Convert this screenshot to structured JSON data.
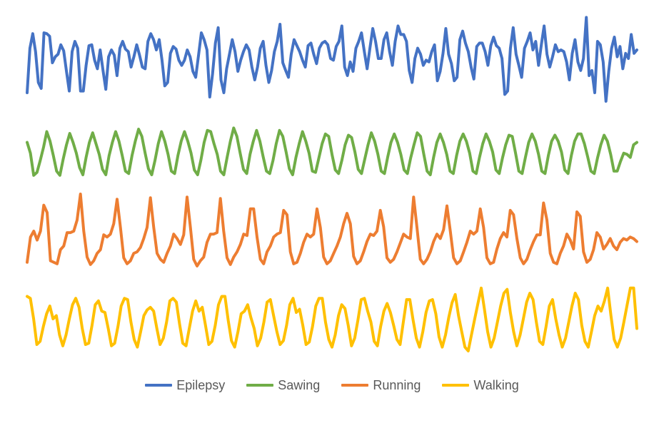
{
  "chart_data": {
    "type": "line",
    "title": "",
    "xlabel": "",
    "ylabel": "",
    "grid": false,
    "legend_position": "bottom",
    "series": [
      {
        "name": "Epilepsy",
        "color": "#4472C4",
        "values": [
          0.1,
          0.62,
          0.79,
          0.58,
          0.22,
          0.15,
          0.8,
          0.79,
          0.76,
          0.45,
          0.52,
          0.55,
          0.66,
          0.59,
          0.35,
          0.12,
          0.58,
          0.7,
          0.62,
          0.12,
          0.12,
          0.42,
          0.65,
          0.66,
          0.48,
          0.38,
          0.6,
          0.36,
          0.14,
          0.52,
          0.6,
          0.54,
          0.3,
          0.62,
          0.7,
          0.61,
          0.58,
          0.4,
          0.52,
          0.66,
          0.54,
          0.4,
          0.38,
          0.7,
          0.79,
          0.72,
          0.6,
          0.72,
          0.48,
          0.18,
          0.22,
          0.56,
          0.64,
          0.61,
          0.48,
          0.42,
          0.48,
          0.6,
          0.52,
          0.35,
          0.28,
          0.54,
          0.8,
          0.72,
          0.6,
          0.05,
          0.32,
          0.68,
          0.86,
          0.25,
          0.1,
          0.38,
          0.55,
          0.72,
          0.58,
          0.35,
          0.48,
          0.58,
          0.66,
          0.6,
          0.4,
          0.25,
          0.4,
          0.62,
          0.7,
          0.42,
          0.22,
          0.36,
          0.58,
          0.7,
          0.9,
          0.45,
          0.36,
          0.28,
          0.55,
          0.72,
          0.65,
          0.58,
          0.48,
          0.4,
          0.65,
          0.68,
          0.55,
          0.44,
          0.62,
          0.68,
          0.7,
          0.66,
          0.5,
          0.48,
          0.64,
          0.7,
          0.88,
          0.4,
          0.3,
          0.46,
          0.35,
          0.62,
          0.7,
          0.8,
          0.58,
          0.38,
          0.62,
          0.85,
          0.7,
          0.5,
          0.5,
          0.72,
          0.8,
          0.58,
          0.42,
          0.7,
          0.88,
          0.78,
          0.78,
          0.7,
          0.36,
          0.22,
          0.5,
          0.62,
          0.55,
          0.42,
          0.48,
          0.46,
          0.58,
          0.66,
          0.24,
          0.35,
          0.56,
          0.85,
          0.55,
          0.44,
          0.24,
          0.28,
          0.72,
          0.82,
          0.68,
          0.58,
          0.4,
          0.26,
          0.64,
          0.68,
          0.68,
          0.58,
          0.42,
          0.65,
          0.75,
          0.65,
          0.62,
          0.5,
          0.08,
          0.12,
          0.62,
          0.86,
          0.55,
          0.42,
          0.28,
          0.62,
          0.7,
          0.8,
          0.6,
          0.7,
          0.42,
          0.66,
          0.88,
          0.55,
          0.4,
          0.52,
          0.66,
          0.58,
          0.6,
          0.58,
          0.46,
          0.25,
          0.56,
          0.72,
          0.46,
          0.36,
          0.5,
          0.98,
          0.3,
          0.36,
          0.1,
          0.7,
          0.66,
          0.46,
          0.0,
          0.35,
          0.62,
          0.75,
          0.52,
          0.64,
          0.38,
          0.56,
          0.5,
          0.78,
          0.56,
          0.6
        ]
      },
      {
        "name": "Sawing",
        "color": "#70AD47",
        "values": [
          0.6,
          0.42,
          0.05,
          0.1,
          0.3,
          0.52,
          0.78,
          0.62,
          0.38,
          0.12,
          0.05,
          0.32,
          0.56,
          0.75,
          0.6,
          0.42,
          0.18,
          0.06,
          0.35,
          0.6,
          0.76,
          0.58,
          0.4,
          0.15,
          0.06,
          0.38,
          0.6,
          0.78,
          0.62,
          0.38,
          0.12,
          0.08,
          0.38,
          0.62,
          0.82,
          0.7,
          0.42,
          0.16,
          0.06,
          0.3,
          0.58,
          0.78,
          0.62,
          0.4,
          0.12,
          0.08,
          0.38,
          0.62,
          0.78,
          0.62,
          0.42,
          0.14,
          0.06,
          0.3,
          0.6,
          0.8,
          0.78,
          0.58,
          0.4,
          0.12,
          0.06,
          0.35,
          0.62,
          0.84,
          0.7,
          0.42,
          0.15,
          0.08,
          0.4,
          0.62,
          0.8,
          0.62,
          0.36,
          0.12,
          0.08,
          0.3,
          0.58,
          0.8,
          0.7,
          0.44,
          0.16,
          0.06,
          0.35,
          0.58,
          0.78,
          0.62,
          0.42,
          0.12,
          0.1,
          0.34,
          0.58,
          0.74,
          0.7,
          0.4,
          0.14,
          0.08,
          0.3,
          0.56,
          0.72,
          0.68,
          0.44,
          0.15,
          0.08,
          0.32,
          0.56,
          0.76,
          0.62,
          0.4,
          0.12,
          0.08,
          0.36,
          0.6,
          0.74,
          0.6,
          0.4,
          0.14,
          0.08,
          0.34,
          0.56,
          0.76,
          0.7,
          0.4,
          0.12,
          0.06,
          0.35,
          0.6,
          0.74,
          0.6,
          0.4,
          0.12,
          0.08,
          0.38,
          0.62,
          0.74,
          0.62,
          0.42,
          0.12,
          0.08,
          0.35,
          0.58,
          0.74,
          0.62,
          0.44,
          0.14,
          0.08,
          0.34,
          0.56,
          0.72,
          0.7,
          0.42,
          0.12,
          0.08,
          0.35,
          0.6,
          0.74,
          0.62,
          0.4,
          0.12,
          0.08,
          0.38,
          0.62,
          0.72,
          0.62,
          0.44,
          0.14,
          0.08,
          0.38,
          0.62,
          0.74,
          0.74,
          0.58,
          0.36,
          0.12,
          0.08,
          0.34,
          0.56,
          0.72,
          0.62,
          0.4,
          0.12,
          0.12,
          0.28,
          0.42,
          0.4,
          0.35,
          0.56,
          0.6
        ]
      },
      {
        "name": "Running",
        "color": "#ED7D31",
        "values": [
          0.08,
          0.42,
          0.5,
          0.38,
          0.5,
          0.85,
          0.75,
          0.1,
          0.08,
          0.06,
          0.25,
          0.3,
          0.48,
          0.48,
          0.5,
          0.65,
          1.0,
          0.5,
          0.15,
          0.05,
          0.1,
          0.2,
          0.25,
          0.45,
          0.42,
          0.46,
          0.6,
          0.93,
          0.55,
          0.14,
          0.06,
          0.1,
          0.2,
          0.22,
          0.28,
          0.4,
          0.55,
          0.95,
          0.55,
          0.2,
          0.12,
          0.08,
          0.2,
          0.3,
          0.46,
          0.4,
          0.32,
          0.45,
          0.96,
          0.55,
          0.12,
          0.03,
          0.1,
          0.15,
          0.35,
          0.46,
          0.46,
          0.48,
          0.94,
          0.5,
          0.14,
          0.05,
          0.15,
          0.22,
          0.32,
          0.46,
          0.44,
          0.8,
          0.8,
          0.42,
          0.12,
          0.06,
          0.22,
          0.3,
          0.42,
          0.46,
          0.48,
          0.78,
          0.72,
          0.22,
          0.06,
          0.08,
          0.2,
          0.35,
          0.46,
          0.42,
          0.46,
          0.8,
          0.55,
          0.15,
          0.06,
          0.1,
          0.2,
          0.3,
          0.42,
          0.6,
          0.74,
          0.6,
          0.16,
          0.06,
          0.1,
          0.22,
          0.36,
          0.46,
          0.44,
          0.5,
          0.78,
          0.56,
          0.14,
          0.08,
          0.12,
          0.22,
          0.34,
          0.46,
          0.42,
          0.4,
          0.96,
          0.55,
          0.12,
          0.06,
          0.12,
          0.22,
          0.36,
          0.46,
          0.4,
          0.52,
          0.84,
          0.5,
          0.14,
          0.06,
          0.1,
          0.22,
          0.35,
          0.5,
          0.46,
          0.5,
          0.8,
          0.55,
          0.14,
          0.06,
          0.08,
          0.26,
          0.4,
          0.48,
          0.42,
          0.78,
          0.72,
          0.4,
          0.14,
          0.06,
          0.12,
          0.25,
          0.36,
          0.45,
          0.45,
          0.88,
          0.65,
          0.2,
          0.08,
          0.06,
          0.2,
          0.3,
          0.46,
          0.38,
          0.26,
          0.76,
          0.7,
          0.22,
          0.08,
          0.12,
          0.25,
          0.48,
          0.42,
          0.26,
          0.32,
          0.4,
          0.3,
          0.25,
          0.35,
          0.4,
          0.38,
          0.42,
          0.4,
          0.36
        ]
      },
      {
        "name": "Walking",
        "color": "#FFC000",
        "values": [
          0.85,
          0.82,
          0.5,
          0.1,
          0.15,
          0.38,
          0.58,
          0.7,
          0.5,
          0.55,
          0.25,
          0.08,
          0.25,
          0.5,
          0.72,
          0.82,
          0.68,
          0.35,
          0.1,
          0.12,
          0.4,
          0.72,
          0.78,
          0.62,
          0.6,
          0.35,
          0.08,
          0.12,
          0.38,
          0.7,
          0.82,
          0.8,
          0.45,
          0.18,
          0.06,
          0.3,
          0.55,
          0.64,
          0.68,
          0.62,
          0.35,
          0.1,
          0.2,
          0.45,
          0.78,
          0.82,
          0.76,
          0.42,
          0.12,
          0.08,
          0.35,
          0.62,
          0.78,
          0.62,
          0.68,
          0.4,
          0.1,
          0.15,
          0.4,
          0.72,
          0.85,
          0.85,
          0.48,
          0.16,
          0.06,
          0.3,
          0.58,
          0.62,
          0.72,
          0.52,
          0.35,
          0.08,
          0.2,
          0.45,
          0.76,
          0.8,
          0.55,
          0.3,
          0.1,
          0.16,
          0.4,
          0.72,
          0.82,
          0.6,
          0.65,
          0.4,
          0.1,
          0.14,
          0.38,
          0.7,
          0.82,
          0.82,
          0.45,
          0.18,
          0.06,
          0.25,
          0.55,
          0.72,
          0.66,
          0.4,
          0.08,
          0.2,
          0.48,
          0.8,
          0.82,
          0.62,
          0.45,
          0.15,
          0.08,
          0.38,
          0.62,
          0.74,
          0.6,
          0.4,
          0.18,
          0.1,
          0.45,
          0.8,
          0.8,
          0.48,
          0.2,
          0.06,
          0.3,
          0.6,
          0.78,
          0.8,
          0.58,
          0.22,
          0.06,
          0.25,
          0.52,
          0.75,
          0.88,
          0.55,
          0.3,
          0.06,
          0.0,
          0.25,
          0.5,
          0.74,
          0.98,
          0.65,
          0.3,
          0.06,
          0.2,
          0.45,
          0.7,
          0.9,
          0.96,
          0.6,
          0.3,
          0.08,
          0.25,
          0.5,
          0.76,
          0.9,
          0.8,
          0.45,
          0.15,
          0.1,
          0.38,
          0.7,
          0.8,
          0.5,
          0.25,
          0.06,
          0.2,
          0.45,
          0.7,
          0.9,
          0.8,
          0.4,
          0.15,
          0.06,
          0.3,
          0.55,
          0.7,
          0.62,
          0.78,
          0.98,
          0.55,
          0.18,
          0.06,
          0.2,
          0.45,
          0.72,
          0.98,
          0.98,
          0.35
        ]
      }
    ]
  }
}
